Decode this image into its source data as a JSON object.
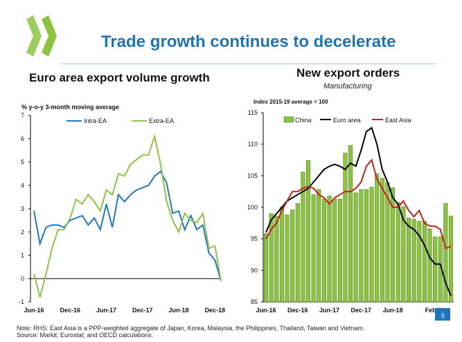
{
  "slide": {
    "title": "Trade growth continues to decelerate",
    "page_number": "5",
    "note": "Note: RHS: East Asia is a PPP-weighted aggregate of Japan, Korea, Malaysia, the Philippines, Thailand, Taiwan and Vietnam.",
    "source": "Source: Markit; Eurostat; and OECD calculations.",
    "brand_color": "#1d74b8",
    "logo_icon": "oecd-chevrons-logo"
  },
  "chart_data": [
    {
      "type": "line",
      "title": "Euro area export volume growth",
      "ylabel": "% y-o-y 3-month moving average",
      "ylim": [
        -1,
        7
      ],
      "yticks": [
        "-1",
        "0",
        "1",
        "2",
        "3",
        "4",
        "5",
        "6",
        "7"
      ],
      "xticklabels": [
        "Jun-16",
        "Dec-16",
        "Jun-17",
        "Dec-17",
        "Jun-18",
        "Dec-18"
      ],
      "x_start": "2016-06",
      "x_end": "2018-12",
      "legend_position": "top",
      "grid": false,
      "series": [
        {
          "name": "Intra-EA",
          "color": "#1f77c8",
          "values": [
            2.9,
            1.5,
            2.2,
            2.3,
            2.3,
            2.2,
            2.5,
            2.6,
            2.7,
            2.3,
            2.6,
            2.1,
            3.2,
            2.2,
            3.6,
            3.3,
            3.6,
            3.8,
            3.9,
            4.0,
            4.4,
            4.6,
            4.1,
            2.8,
            2.9,
            2.1,
            2.7,
            2.1,
            2.3,
            1.1,
            0.8,
            -0.1
          ]
        },
        {
          "name": "Extra-EA",
          "color": "#8cc43f",
          "values": [
            0.2,
            -0.8,
            0.2,
            1.3,
            2.1,
            2.1,
            2.6,
            3.4,
            3.2,
            3.6,
            3.3,
            2.9,
            3.8,
            3.6,
            4.5,
            4.4,
            4.9,
            5.1,
            5.3,
            5.3,
            6.1,
            4.9,
            3.3,
            2.5,
            2.0,
            2.8,
            2.5,
            2.4,
            2.8,
            1.3,
            1.4,
            -0.1
          ]
        }
      ]
    },
    {
      "type": "bar",
      "title": "New export orders",
      "subtitle": "Manufacturing",
      "ylabel": "Index 2015-19 average = 100",
      "ylim": [
        85,
        115
      ],
      "yticks": [
        "85",
        "90",
        "95",
        "100",
        "105",
        "110",
        "115"
      ],
      "xticklabels": [
        "Jun-16",
        "Dec-16",
        "Jun-17",
        "Dec-17",
        "Jun-18",
        "Feb-19"
      ],
      "x_start": "2016-06",
      "x_end": "2019-02",
      "legend_position": "top",
      "grid": false,
      "series": [
        {
          "name": "China",
          "kind": "bar",
          "color": "#8cc43f",
          "values": [
            95.8,
            99.0,
            98.6,
            100.0,
            98.8,
            99.6,
            100.6,
            105.6,
            107.4,
            102.0,
            102.8,
            101.3,
            101.8,
            101.3,
            101.3,
            108.6,
            109.8,
            102.3,
            102.8,
            102.8,
            103.2,
            105.3,
            104.6,
            103.9,
            103.1,
            100.8,
            100.1,
            98.3,
            98.1,
            97.8,
            97.8,
            96.6,
            95.3,
            95.3,
            100.6,
            98.6
          ]
        },
        {
          "name": "Euro area",
          "kind": "line",
          "color": "#000000",
          "values": [
            96.0,
            98.0,
            99.0,
            100.0,
            101.0,
            101.5,
            102.0,
            102.5,
            103.0,
            104.0,
            105.0,
            106.0,
            106.5,
            106.8,
            106.5,
            106.0,
            107.0,
            106.5,
            109.0,
            112.0,
            112.6,
            110.0,
            106.0,
            104.0,
            101.5,
            100.5,
            98.0,
            97.0,
            96.5,
            95.5,
            94.0,
            92.0,
            91.0,
            91.0,
            88.0,
            86.0
          ]
        },
        {
          "name": "East Asia",
          "kind": "line",
          "color": "#c81e1e",
          "values": [
            95.0,
            96.5,
            97.5,
            99.5,
            101.0,
            102.5,
            102.5,
            103.0,
            103.3,
            103.0,
            102.0,
            101.5,
            100.5,
            101.5,
            102.0,
            102.5,
            102.5,
            103.0,
            104.0,
            106.5,
            107.5,
            104.5,
            103.0,
            101.5,
            100.0,
            100.0,
            101.0,
            99.5,
            98.5,
            99.5,
            97.5,
            97.0,
            97.0,
            96.5,
            93.5,
            93.8
          ]
        }
      ]
    }
  ]
}
